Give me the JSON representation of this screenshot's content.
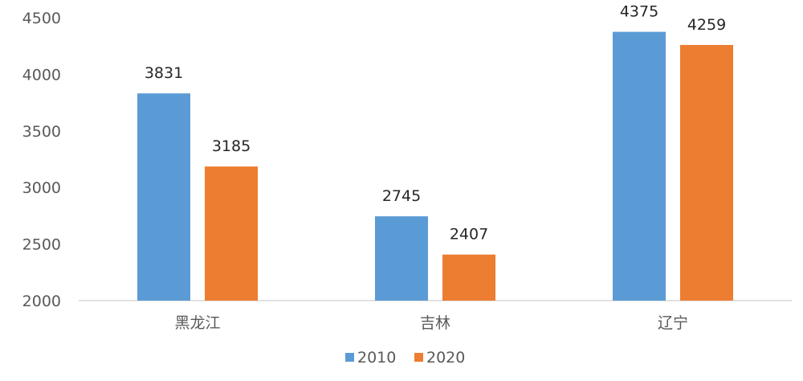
{
  "chart_data": {
    "type": "bar",
    "title": "",
    "xlabel": "",
    "ylabel": "",
    "categories": [
      "黑龙江",
      "吉林",
      "辽宁"
    ],
    "series": [
      {
        "name": "2010",
        "color": "#5B9BD5",
        "values": [
          3831,
          2745,
          4375
        ]
      },
      {
        "name": "2020",
        "color": "#ED7D31",
        "values": [
          3185,
          2407,
          4259
        ]
      }
    ],
    "ylim": [
      2000,
      4500
    ],
    "yticks": [
      2000,
      2500,
      3000,
      3500,
      4000,
      4500
    ],
    "grid": false,
    "legend": "bottom"
  }
}
